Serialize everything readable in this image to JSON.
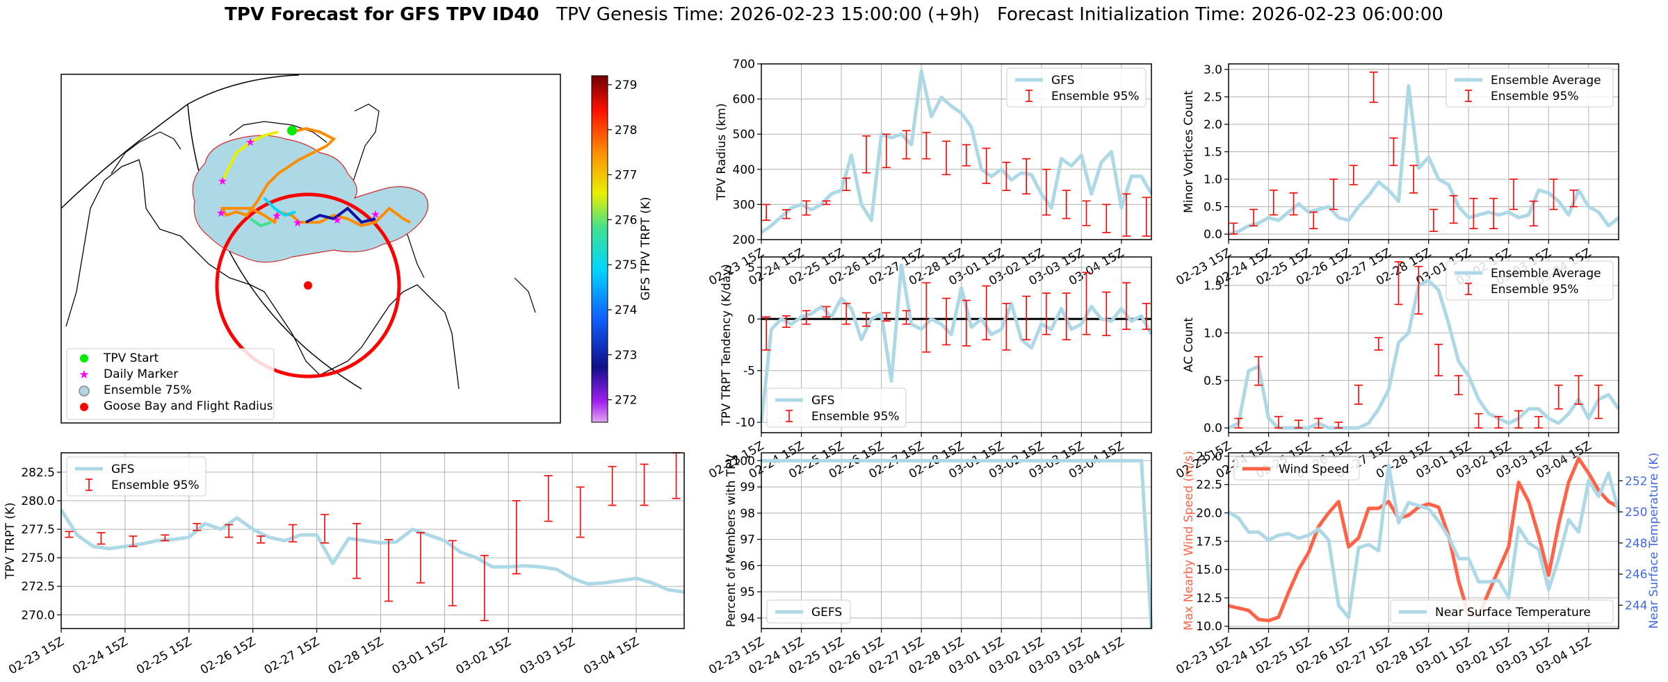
{
  "title": {
    "main": "TPV Forecast for GFS TPV ID40",
    "genesis": "TPV Genesis Time: 2026-02-23 15:00:00 (+9h)",
    "init": "Forecast Initialization Time: 2026-02-23 06:00:00"
  },
  "colors": {
    "gfs": "#add8e6",
    "ens": "#ff0000",
    "wind": "#ff6347",
    "temp_axis": "#4169e1",
    "zero": "#000000"
  },
  "map": {
    "colorbar_label": "GFS TPV TRPT (K)",
    "colorbar_ticks": [
      279,
      278,
      277,
      276,
      275,
      274,
      273,
      272
    ],
    "colorbar_range": [
      271.5,
      279.2
    ],
    "legend": [
      "TPV Start",
      "Daily Marker",
      "Ensemble 75%",
      "Goose Bay and Flight Radius"
    ]
  },
  "chart_data": [
    {
      "id": "radius",
      "type": "line",
      "ylabel": "TPV Radius (km)",
      "ylim": [
        200,
        700
      ],
      "yticks": [
        200,
        300,
        400,
        500,
        600,
        700
      ],
      "legend": [
        "GFS",
        "Ensemble 95%"
      ],
      "legend_pos": "top-right",
      "series": [
        {
          "name": "GFS",
          "values": [
            220,
            240,
            265,
            290,
            300,
            285,
            300,
            330,
            340,
            440,
            300,
            255,
            500,
            490,
            500,
            470,
            680,
            550,
            605,
            580,
            560,
            520,
            400,
            380,
            400,
            370,
            390,
            385,
            330,
            290,
            430,
            410,
            440,
            330,
            420,
            450,
            290,
            380,
            380,
            330
          ]
        }
      ],
      "ens95": [
        [
          255,
          300
        ],
        [
          260,
          285
        ],
        [
          270,
          310
        ],
        [
          300,
          310
        ],
        [
          340,
          375
        ],
        [
          390,
          495
        ],
        [
          405,
          500
        ],
        [
          430,
          510
        ],
        [
          430,
          505
        ],
        [
          385,
          480
        ],
        [
          410,
          470
        ],
        [
          360,
          460
        ],
        [
          340,
          420
        ],
        [
          330,
          430
        ],
        [
          270,
          400
        ],
        [
          260,
          340
        ],
        [
          240,
          310
        ],
        [
          220,
          300
        ],
        [
          210,
          330
        ],
        [
          210,
          320
        ]
      ]
    },
    {
      "id": "minor",
      "type": "line",
      "ylabel": "Minor Vortices Count",
      "ylim": [
        -0.1,
        3.1
      ],
      "yticks": [
        0.0,
        0.5,
        1.0,
        1.5,
        2.0,
        2.5,
        3.0
      ],
      "legend": [
        "Ensemble Average",
        "Ensemble 95%"
      ],
      "legend_pos": "top-right",
      "series": [
        {
          "name": "Ensemble Average",
          "values": [
            0.0,
            0.05,
            0.15,
            0.2,
            0.3,
            0.25,
            0.4,
            0.55,
            0.4,
            0.45,
            0.5,
            0.3,
            0.25,
            0.5,
            0.7,
            0.95,
            0.8,
            0.6,
            2.7,
            1.2,
            1.4,
            1.0,
            0.9,
            0.5,
            0.3,
            0.35,
            0.4,
            0.35,
            0.4,
            0.3,
            0.35,
            0.8,
            0.75,
            0.6,
            0.35,
            0.8,
            0.5,
            0.4,
            0.15,
            0.3
          ]
        }
      ],
      "ens95": [
        [
          0.0,
          0.2
        ],
        [
          0.15,
          0.45
        ],
        [
          0.35,
          0.8
        ],
        [
          0.35,
          0.75
        ],
        [
          0.1,
          0.4
        ],
        [
          0.45,
          1.0
        ],
        [
          0.9,
          1.25
        ],
        [
          2.4,
          2.95
        ],
        [
          1.25,
          1.75
        ],
        [
          0.75,
          1.25
        ],
        [
          0.05,
          0.45
        ],
        [
          0.2,
          0.7
        ],
        [
          0.1,
          0.65
        ],
        [
          0.1,
          0.65
        ],
        [
          0.45,
          1.0
        ],
        [
          0.15,
          0.6
        ],
        [
          0.45,
          1.0
        ],
        [
          0.5,
          0.8
        ]
      ]
    },
    {
      "id": "tendency",
      "type": "line",
      "ylabel": "TPV TRPT Tendency (K/day)",
      "ylim": [
        -11,
        6
      ],
      "yticks": [
        -10,
        -5,
        0,
        5
      ],
      "legend": [
        "GFS",
        "Ensemble 95%"
      ],
      "legend_pos": "bottom-left",
      "series": [
        {
          "name": "GFS",
          "values": [
            -10,
            -1,
            0,
            -0.5,
            0.2,
            0.5,
            1.2,
            0.2,
            2.0,
            1.0,
            -2.0,
            0.0,
            0.5,
            -6.0,
            5.2,
            -0.5,
            -1.0,
            0.0,
            -0.5,
            -1.5,
            3.0,
            -0.8,
            0.0,
            -1.5,
            -1.0,
            1.5,
            -2.0,
            -2.8,
            -0.5,
            -1.0,
            1.0,
            -1.0,
            -0.5,
            1.2,
            0.0,
            -0.2,
            1.0,
            -0.2,
            0.3,
            -1.5
          ]
        }
      ],
      "ens95": [
        [
          -3,
          0.2
        ],
        [
          -0.8,
          0.3
        ],
        [
          -0.5,
          0.8
        ],
        [
          0.2,
          1.2
        ],
        [
          -0.5,
          1.5
        ],
        [
          -0.7,
          0.6
        ],
        [
          -0.2,
          0.6
        ],
        [
          -0.5,
          0.8
        ],
        [
          -3.2,
          3.5
        ],
        [
          -2.5,
          2.0
        ],
        [
          -2.6,
          1.8
        ],
        [
          -2.0,
          3.2
        ],
        [
          -3.0,
          1.5
        ],
        [
          -2.0,
          2.2
        ],
        [
          -1.5,
          2.5
        ],
        [
          -2.0,
          2.5
        ],
        [
          -1.5,
          4.5
        ],
        [
          -1.6,
          2.6
        ],
        [
          -1.0,
          3.5
        ],
        [
          -1.0,
          1.5
        ]
      ]
    },
    {
      "id": "ac",
      "type": "line",
      "ylabel": "AC Count",
      "ylim": [
        -0.05,
        1.8
      ],
      "yticks": [
        0.0,
        0.5,
        1.0,
        1.5
      ],
      "legend": [
        "Ensemble Average",
        "Ensemble 95%"
      ],
      "legend_pos": "top-right",
      "series": [
        {
          "name": "Ensemble Average",
          "values": [
            0.0,
            0.05,
            0.6,
            0.65,
            0.1,
            0.0,
            0.0,
            0.0,
            0.0,
            0.05,
            0.0,
            0.0,
            0.0,
            0.0,
            0.05,
            0.2,
            0.4,
            0.9,
            1.0,
            1.5,
            1.55,
            1.45,
            1.1,
            0.7,
            0.55,
            0.3,
            0.15,
            0.1,
            0.05,
            0.1,
            0.2,
            0.2,
            0.1,
            0.05,
            0.15,
            0.3,
            0.1,
            0.3,
            0.35,
            0.2
          ]
        }
      ],
      "ens95": [
        [
          0.0,
          0.1
        ],
        [
          0.45,
          0.75
        ],
        [
          0.0,
          0.12
        ],
        [
          0.0,
          0.08
        ],
        [
          0.0,
          0.1
        ],
        [
          0.0,
          0.06
        ],
        [
          0.25,
          0.45
        ],
        [
          0.82,
          0.95
        ],
        [
          1.3,
          1.75
        ],
        [
          1.2,
          1.7
        ],
        [
          0.55,
          0.88
        ],
        [
          0.35,
          0.55
        ],
        [
          0.0,
          0.15
        ],
        [
          0.0,
          0.12
        ],
        [
          0.0,
          0.18
        ],
        [
          0.0,
          0.12
        ],
        [
          0.2,
          0.45
        ],
        [
          0.25,
          0.55
        ],
        [
          0.1,
          0.45
        ]
      ]
    },
    {
      "id": "trpt",
      "type": "line",
      "ylabel": "TPV TRPT (K)",
      "ylim": [
        268.8,
        284.2
      ],
      "yticks": [
        270.0,
        272.5,
        275.0,
        277.5,
        280.0,
        282.5
      ],
      "legend": [
        "GFS",
        "Ensemble 95%"
      ],
      "legend_pos": "top-left",
      "xtick_labels": [
        "02-23 15Z",
        "02-24 15Z",
        "02-25 15Z",
        "02-26 15Z",
        "02-27 15Z",
        "02-28 15Z",
        "03-01 15Z",
        "03-02 15Z",
        "03-03 15Z",
        "03-04 15Z"
      ],
      "series": [
        {
          "name": "GFS",
          "values": [
            279.2,
            277.0,
            276.0,
            275.8,
            276.0,
            276.2,
            276.5,
            276.6,
            276.8,
            278.0,
            277.5,
            278.5,
            277.5,
            276.8,
            276.5,
            277.0,
            277.0,
            274.5,
            276.7,
            276.5,
            276.3,
            276.4,
            277.5,
            277.0,
            276.5,
            275.5,
            275.0,
            274.2,
            274.2,
            274.3,
            274.2,
            274.0,
            273.2,
            272.7,
            272.8,
            273.0,
            273.2,
            272.8,
            272.2,
            272.0
          ]
        }
      ],
      "ens95": [
        [
          276.8,
          277.3
        ],
        [
          276.2,
          277.2
        ],
        [
          276.0,
          276.9
        ],
        [
          276.5,
          277.0
        ],
        [
          277.4,
          278.0
        ],
        [
          276.8,
          277.9
        ],
        [
          276.3,
          276.9
        ],
        [
          276.4,
          277.9
        ],
        [
          276.3,
          278.8
        ],
        [
          273.2,
          278.0
        ],
        [
          271.2,
          276.6
        ],
        [
          272.8,
          277.2
        ],
        [
          270.8,
          276.5
        ],
        [
          269.5,
          275.2
        ],
        [
          273.6,
          280.0
        ],
        [
          278.2,
          282.2
        ],
        [
          276.8,
          281.2
        ],
        [
          279.6,
          283.0
        ],
        [
          279.6,
          283.2
        ],
        [
          280.2,
          284.2
        ]
      ]
    },
    {
      "id": "members",
      "type": "line",
      "ylabel": "Percent of Members with TPV",
      "ylim": [
        93.6,
        100.3
      ],
      "yticks": [
        94,
        95,
        96,
        97,
        98,
        99,
        100
      ],
      "legend": [
        "GEFS"
      ],
      "legend_pos": "bottom-left",
      "series": [
        {
          "name": "GEFS",
          "values": [
            100,
            100,
            100,
            100,
            100,
            100,
            100,
            100,
            100,
            100,
            100,
            100,
            100,
            100,
            100,
            100,
            100,
            100,
            100,
            100,
            100,
            100,
            100,
            100,
            100,
            100,
            100,
            100,
            100,
            100,
            100,
            100,
            100,
            100,
            100,
            100,
            100,
            100,
            100,
            93.6
          ]
        }
      ]
    },
    {
      "id": "wind_temp",
      "type": "line",
      "ylabel": "Max Nearby Wind Speed (m/s)",
      "ylim": [
        9.8,
        25.3
      ],
      "yticks": [
        10.0,
        12.5,
        15.0,
        17.5,
        20.0,
        22.5,
        25.0
      ],
      "ylabel2": "Near Surface Temperature (K)",
      "ylim2": [
        242.5,
        253.8
      ],
      "yticks2": [
        244,
        246,
        248,
        250,
        252
      ],
      "legend": [
        "Wind Speed"
      ],
      "legend_pos": "top-left",
      "legend2": [
        "Near Surface Temperature"
      ],
      "legend2_pos": "bottom-right",
      "series": [
        {
          "name": "Wind Speed",
          "values": [
            11.8,
            11.6,
            11.4,
            10.6,
            10.5,
            10.8,
            13.0,
            15.0,
            16.5,
            18.8,
            20.0,
            21.0,
            17.0,
            17.8,
            20.4,
            20.4,
            21.0,
            19.5,
            19.8,
            20.5,
            20.8,
            20.5,
            18.0,
            14.0,
            11.0,
            10.9,
            13.0,
            15.0,
            17.0,
            22.7,
            21.0,
            18.0,
            14.5,
            19.0,
            22.7,
            24.8,
            23.5,
            22.0,
            21.0,
            20.5
          ]
        },
        {
          "name": "Near Surface Temperature",
          "values": [
            250.0,
            249.6,
            248.7,
            248.7,
            248.2,
            248.5,
            248.6,
            248.3,
            248.5,
            248.9,
            248.2,
            244.0,
            243.2,
            247.7,
            247.9,
            247.5,
            253.0,
            249.3,
            250.6,
            250.4,
            250.2,
            249.4,
            248.4,
            247.0,
            247.0,
            245.5,
            245.5,
            245.6,
            244.5,
            249.0,
            248.0,
            247.6,
            245.0,
            247.0,
            249.5,
            248.7,
            252.0,
            251.0,
            252.5,
            250.0
          ]
        }
      ]
    }
  ]
}
